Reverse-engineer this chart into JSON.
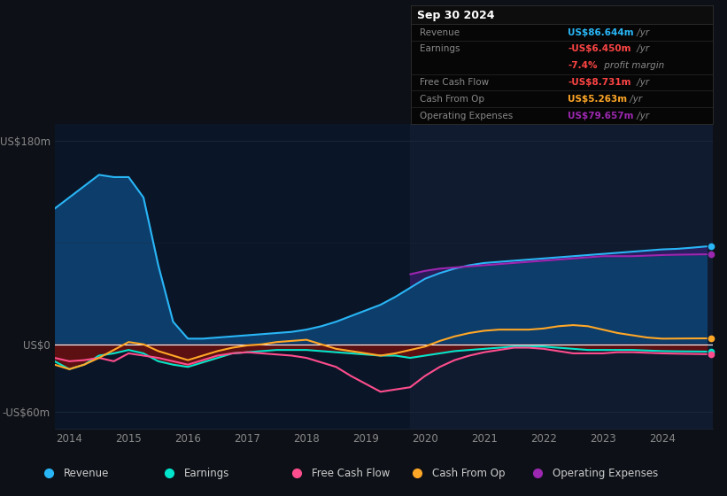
{
  "bg_color": "#0d1117",
  "plot_bg_color": "#0a1628",
  "grid_color": "#1e2d3d",
  "zero_line_color": "#ffffff",
  "years": [
    2013.75,
    2014.0,
    2014.25,
    2014.5,
    2014.75,
    2015.0,
    2015.25,
    2015.5,
    2015.75,
    2016.0,
    2016.25,
    2016.5,
    2016.75,
    2017.0,
    2017.25,
    2017.5,
    2017.75,
    2018.0,
    2018.25,
    2018.5,
    2018.75,
    2019.0,
    2019.25,
    2019.5,
    2019.75,
    2020.0,
    2020.25,
    2020.5,
    2020.75,
    2021.0,
    2021.25,
    2021.5,
    2021.75,
    2022.0,
    2022.25,
    2022.5,
    2022.75,
    2023.0,
    2023.25,
    2023.5,
    2023.75,
    2024.0,
    2024.25,
    2024.5,
    2024.75
  ],
  "revenue": [
    120,
    130,
    140,
    150,
    148,
    148,
    130,
    70,
    20,
    5,
    5,
    6,
    7,
    8,
    9,
    10,
    11,
    13,
    16,
    20,
    25,
    30,
    35,
    42,
    50,
    58,
    63,
    67,
    70,
    72,
    73,
    74,
    75,
    76,
    77,
    78,
    79,
    80,
    81,
    82,
    83,
    84,
    84.5,
    85.5,
    86.644
  ],
  "earnings": [
    -15,
    -22,
    -18,
    -10,
    -8,
    -5,
    -8,
    -15,
    -18,
    -20,
    -16,
    -12,
    -8,
    -7,
    -6,
    -5,
    -5,
    -5,
    -6,
    -7,
    -8,
    -9,
    -10,
    -10,
    -12,
    -10,
    -8,
    -6,
    -5,
    -4,
    -3,
    -2,
    -2,
    -2,
    -3,
    -4,
    -5,
    -5,
    -5,
    -5,
    -5.5,
    -6,
    -6.2,
    -6.3,
    -6.45
  ],
  "free_cash_flow": [
    -12,
    -15,
    -14,
    -12,
    -15,
    -8,
    -10,
    -12,
    -15,
    -18,
    -14,
    -10,
    -8,
    -7,
    -8,
    -9,
    -10,
    -12,
    -16,
    -20,
    -28,
    -35,
    -42,
    -40,
    -38,
    -28,
    -20,
    -14,
    -10,
    -7,
    -5,
    -3,
    -3,
    -4,
    -6,
    -8,
    -8,
    -8,
    -7,
    -7,
    -7.5,
    -8,
    -8.3,
    -8.5,
    -8.731
  ],
  "cash_from_op": [
    -18,
    -22,
    -18,
    -12,
    -5,
    2,
    0,
    -6,
    -10,
    -14,
    -10,
    -6,
    -3,
    -1,
    0,
    2,
    3,
    4,
    0,
    -4,
    -6,
    -8,
    -10,
    -8,
    -5,
    -2,
    3,
    7,
    10,
    12,
    13,
    13,
    13,
    14,
    16,
    17,
    16,
    13,
    10,
    8,
    6,
    5,
    5.1,
    5.2,
    5.263
  ],
  "operating_expenses": [
    0,
    0,
    0,
    0,
    0,
    0,
    0,
    0,
    0,
    0,
    0,
    0,
    0,
    0,
    0,
    0,
    0,
    0,
    0,
    0,
    0,
    0,
    0,
    0,
    62,
    65,
    67,
    68,
    69,
    70,
    71,
    72,
    73,
    74,
    75,
    76,
    77,
    78,
    78,
    78,
    78.5,
    79,
    79.3,
    79.5,
    79.657
  ],
  "revenue_color": "#29b6f6",
  "revenue_fill_color": "#0d3d6b",
  "earnings_color": "#00e5cc",
  "free_cash_flow_color": "#ff4d8d",
  "cash_from_op_color": "#ffa726",
  "operating_expenses_color": "#9c27b0",
  "operating_expenses_fill_color": "#2d1b5e",
  "earnings_fill_color": "#6b0f0f",
  "highlight_color_left": "#0d1628",
  "highlight_color_right": "#0d2040",
  "info_box": {
    "title": "Sep 30 2024",
    "rows": [
      {
        "label": "Revenue",
        "value": "US$86.644m",
        "value_color": "#29b6f6",
        "suffix": " /yr"
      },
      {
        "label": "Earnings",
        "value": "-US$6.450m",
        "value_color": "#ff4444",
        "suffix": " /yr"
      },
      {
        "label": "",
        "value": "-7.4%",
        "value_color": "#ff4444",
        "suffix": " profit margin"
      },
      {
        "label": "Free Cash Flow",
        "value": "-US$8.731m",
        "value_color": "#ff4444",
        "suffix": " /yr"
      },
      {
        "label": "Cash From Op",
        "value": "US$5.263m",
        "value_color": "#ffa726",
        "suffix": " /yr"
      },
      {
        "label": "Operating Expenses",
        "value": "US$79.657m",
        "value_color": "#9c27b0",
        "suffix": " /yr"
      }
    ]
  },
  "legend_items": [
    {
      "label": "Revenue",
      "color": "#29b6f6"
    },
    {
      "label": "Earnings",
      "color": "#00e5cc"
    },
    {
      "label": "Free Cash Flow",
      "color": "#ff4d8d"
    },
    {
      "label": "Cash From Op",
      "color": "#ffa726"
    },
    {
      "label": "Operating Expenses",
      "color": "#9c27b0"
    }
  ],
  "xlim": [
    2013.75,
    2024.85
  ],
  "ylim": [
    -75,
    195
  ],
  "xticks": [
    2014,
    2015,
    2016,
    2017,
    2018,
    2019,
    2020,
    2021,
    2022,
    2023,
    2024
  ],
  "ytick_positions": [
    180,
    0,
    -60
  ],
  "ytick_labels": [
    "US$180m",
    "US$0",
    "-US$60m"
  ],
  "highlight_start": 2019.75,
  "highlight_end": 2024.85,
  "lw": 1.5
}
